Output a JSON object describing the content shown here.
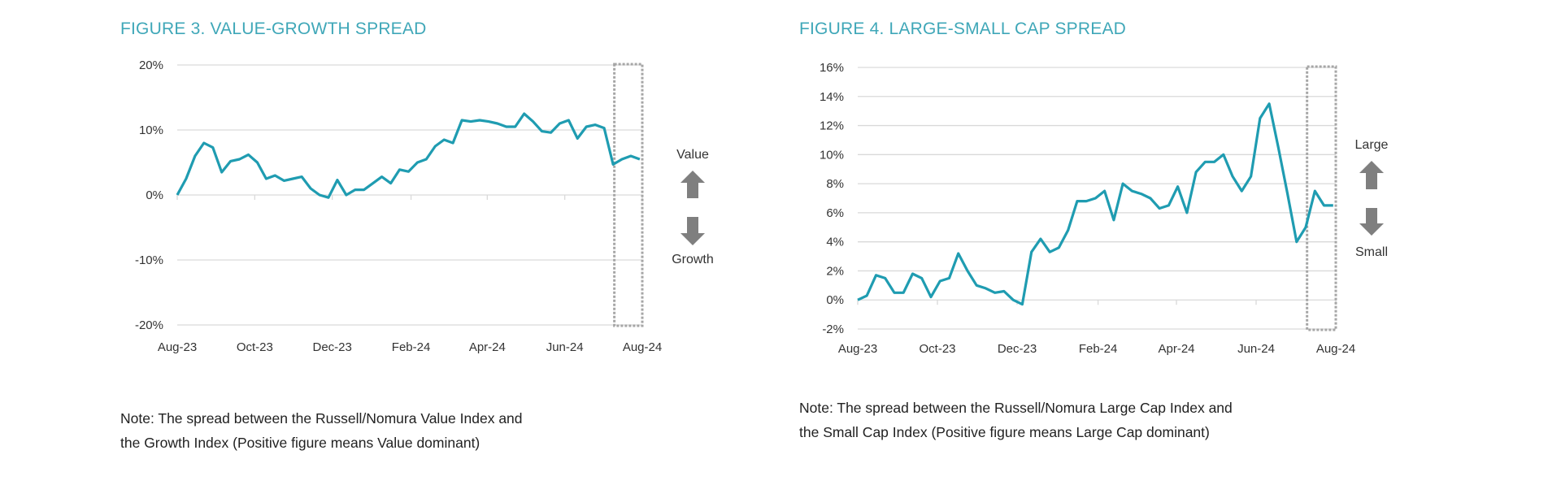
{
  "colors": {
    "title": "#3fa7b8",
    "line": "#1f9cb1",
    "grid": "#d9d9d9",
    "arrow": "#7f7f7f",
    "highlight_box": "#a6a6a6"
  },
  "chart_data": [
    {
      "type": "line",
      "title": "FIGURE 3. VALUE-GROWTH SPREAD",
      "xlabel": "",
      "ylabel": "",
      "ylim": [
        -20,
        20
      ],
      "y_ticks": [
        "-20%",
        "-10%",
        "0%",
        "10%",
        "20%"
      ],
      "y_tick_values": [
        -20,
        -10,
        0,
        10,
        20
      ],
      "x_ticks": [
        "Aug-23",
        "Oct-23",
        "Dec-23",
        "Feb-24",
        "Apr-24",
        "Jun-24",
        "Aug-24"
      ],
      "x_tick_dates": [
        "2023-08-01",
        "2023-10-01",
        "2023-12-01",
        "2024-02-01",
        "2024-04-01",
        "2024-06-01",
        "2024-08-01"
      ],
      "grid": true,
      "highlight_range": [
        "2024-07-10",
        "2024-08-01"
      ],
      "side_labels": {
        "up": "Value",
        "down": "Growth"
      },
      "note": [
        "Note: The spread between the Russell/Nomura Value Index and",
        "the Growth Index (Positive figure means Value dominant)"
      ],
      "x": [
        "2023-08-01",
        "2023-08-08",
        "2023-08-15",
        "2023-08-22",
        "2023-08-29",
        "2023-09-05",
        "2023-09-12",
        "2023-09-19",
        "2023-09-26",
        "2023-10-03",
        "2023-10-10",
        "2023-10-17",
        "2023-10-24",
        "2023-10-31",
        "2023-11-07",
        "2023-11-14",
        "2023-11-21",
        "2023-11-28",
        "2023-12-05",
        "2023-12-12",
        "2023-12-19",
        "2023-12-26",
        "2024-01-02",
        "2024-01-09",
        "2024-01-16",
        "2024-01-23",
        "2024-01-30",
        "2024-02-06",
        "2024-02-13",
        "2024-02-20",
        "2024-02-27",
        "2024-03-05",
        "2024-03-12",
        "2024-03-19",
        "2024-03-26",
        "2024-04-02",
        "2024-04-09",
        "2024-04-16",
        "2024-04-23",
        "2024-04-30",
        "2024-05-07",
        "2024-05-14",
        "2024-05-21",
        "2024-05-28",
        "2024-06-04",
        "2024-06-11",
        "2024-06-18",
        "2024-06-25",
        "2024-07-02",
        "2024-07-09",
        "2024-07-16",
        "2024-07-23",
        "2024-07-30"
      ],
      "values": [
        0,
        2.5,
        6,
        8,
        7.3,
        3.5,
        5.2,
        5.5,
        6.2,
        5,
        2.5,
        3,
        2.2,
        2.5,
        2.8,
        1,
        0,
        -0.4,
        2.3,
        0,
        0.8,
        0.8,
        1.8,
        2.8,
        1.8,
        3.9,
        3.6,
        5,
        5.5,
        7.5,
        8.5,
        8,
        11.5,
        11.3,
        11.5,
        11.3,
        11,
        10.5,
        10.5,
        12.5,
        11.3,
        9.8,
        9.6,
        11,
        11.5,
        8.7,
        10.5,
        10.8,
        10.3,
        4.7,
        5.5,
        6,
        5.5
      ]
    },
    {
      "type": "line",
      "title": "FIGURE 4. LARGE-SMALL CAP SPREAD",
      "xlabel": "",
      "ylabel": "",
      "ylim": [
        -2,
        16
      ],
      "y_ticks": [
        "-2%",
        "0%",
        "2%",
        "4%",
        "6%",
        "8%",
        "10%",
        "12%",
        "14%",
        "16%"
      ],
      "y_tick_values": [
        -2,
        0,
        2,
        4,
        6,
        8,
        10,
        12,
        14,
        16
      ],
      "x_ticks": [
        "Aug-23",
        "Oct-23",
        "Dec-23",
        "Feb-24",
        "Apr-24",
        "Jun-24",
        "Aug-24"
      ],
      "x_tick_dates": [
        "2023-08-01",
        "2023-10-01",
        "2023-12-01",
        "2024-02-01",
        "2024-04-01",
        "2024-06-01",
        "2024-08-01"
      ],
      "grid": true,
      "highlight_range": [
        "2024-07-10",
        "2024-08-01"
      ],
      "side_labels": {
        "up": "Large",
        "down": "Small"
      },
      "note": [
        "Note: The spread between the Russell/Nomura Large Cap Index and",
        "the Small Cap Index (Positive figure means Large Cap dominant)"
      ],
      "x": [
        "2023-08-01",
        "2023-08-08",
        "2023-08-15",
        "2023-08-22",
        "2023-08-29",
        "2023-09-05",
        "2023-09-12",
        "2023-09-19",
        "2023-09-26",
        "2023-10-03",
        "2023-10-10",
        "2023-10-17",
        "2023-10-24",
        "2023-10-31",
        "2023-11-07",
        "2023-11-14",
        "2023-11-21",
        "2023-11-28",
        "2023-12-05",
        "2023-12-12",
        "2023-12-19",
        "2023-12-26",
        "2024-01-02",
        "2024-01-09",
        "2024-01-16",
        "2024-01-23",
        "2024-01-30",
        "2024-02-06",
        "2024-02-13",
        "2024-02-20",
        "2024-02-27",
        "2024-03-05",
        "2024-03-12",
        "2024-03-19",
        "2024-03-26",
        "2024-04-02",
        "2024-04-09",
        "2024-04-16",
        "2024-04-23",
        "2024-04-30",
        "2024-05-07",
        "2024-05-14",
        "2024-05-21",
        "2024-05-28",
        "2024-06-04",
        "2024-06-11",
        "2024-06-18",
        "2024-06-25",
        "2024-07-02",
        "2024-07-09",
        "2024-07-16",
        "2024-07-23",
        "2024-07-30"
      ],
      "values": [
        0,
        0.3,
        1.7,
        1.5,
        0.5,
        0.5,
        1.8,
        1.5,
        0.2,
        1.3,
        1.5,
        3.2,
        2,
        1,
        0.8,
        0.5,
        0.6,
        0,
        -0.3,
        3.3,
        4.2,
        3.3,
        3.6,
        4.8,
        6.8,
        6.8,
        7,
        7.5,
        5.5,
        8,
        7.5,
        7.3,
        7,
        6.3,
        6.5,
        7.8,
        6,
        8.8,
        9.5,
        9.5,
        10,
        8.5,
        7.5,
        8.5,
        12.5,
        13.5,
        10.5,
        7.3,
        4,
        5,
        7.5,
        6.5,
        6.5
      ]
    }
  ]
}
